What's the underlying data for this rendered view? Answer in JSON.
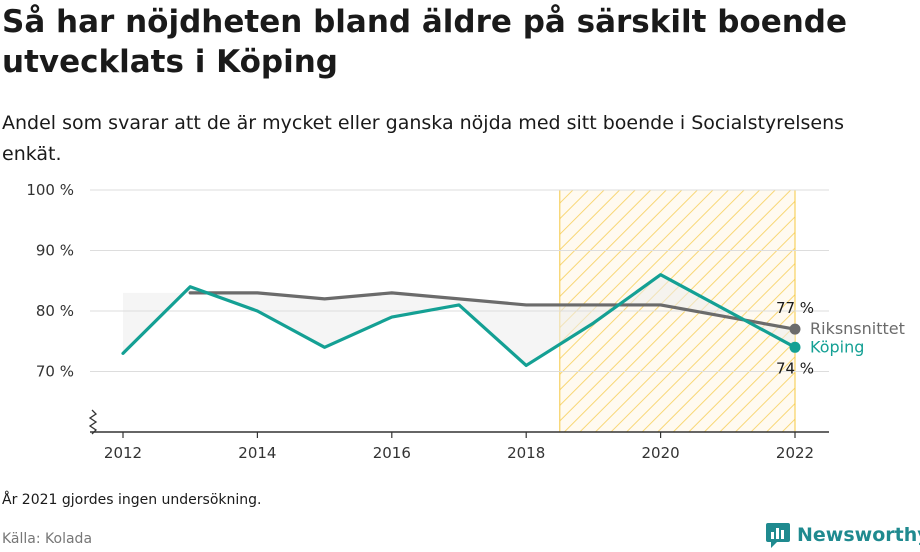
{
  "header": {
    "title": "Så har nöjdheten bland äldre på särskilt boende utvecklats i Köping",
    "subtitle": "Andel som svarar att de är mycket eller ganska nöjda med sitt boende i Socialstyrelsens enkät."
  },
  "footer": {
    "note": "År 2021 gjordes ingen undersökning.",
    "source": "Källa: Kolada",
    "brand": "Newsworthy"
  },
  "colors": {
    "national": "#6b6b6b",
    "koping": "#14a094",
    "highlight": "#f5c842",
    "gap_fill": "#ececec",
    "grid": "#dddddd"
  },
  "chart_data": {
    "type": "line",
    "x_ticks": [
      2012,
      2014,
      2016,
      2018,
      2020,
      2022
    ],
    "x_tick_labels": [
      "2012",
      "2014",
      "2016",
      "2018",
      "2020",
      "2022"
    ],
    "xlim": [
      2012,
      2022
    ],
    "y_ticks": [
      70,
      80,
      90,
      100
    ],
    "y_tick_labels": [
      "70 %",
      "80 %",
      "90 %",
      "100 %"
    ],
    "ylim": [
      60,
      100
    ],
    "axis_break": true,
    "highlight_range": [
      2018.5,
      2022
    ],
    "grid": true,
    "series": [
      {
        "name": "Riksnsnittet",
        "color_key": "national",
        "x": [
          2013,
          2014,
          2015,
          2016,
          2017,
          2018,
          2019,
          2020,
          2021,
          2022
        ],
        "values": [
          83,
          83,
          82,
          83,
          82,
          81,
          81,
          81,
          79,
          77
        ],
        "end_label": "77 %"
      },
      {
        "name": "Köping",
        "color_key": "koping",
        "x": [
          2012,
          2013,
          2014,
          2015,
          2016,
          2017,
          2018,
          2019,
          2020,
          2022
        ],
        "values": [
          73,
          84,
          80,
          74,
          79,
          81,
          71,
          78,
          86,
          74
        ],
        "end_label": "74 %"
      }
    ]
  }
}
